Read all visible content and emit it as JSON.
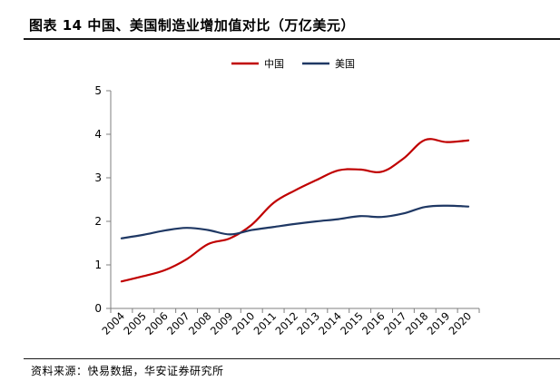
{
  "header": {
    "title": "图表 14 中国、美国制造业增加值对比（万亿美元）"
  },
  "footer": {
    "source": "资料来源：快易数据，华安证券研究所"
  },
  "colors": {
    "china": "#c00000",
    "usa": "#1f3864",
    "axis": "#7f7f7f",
    "text": "#000000"
  },
  "chart_data": {
    "type": "line",
    "title": "",
    "xlabel": "",
    "ylabel": "",
    "categories": [
      "2004",
      "2005",
      "2006",
      "2007",
      "2008",
      "2009",
      "2010",
      "2011",
      "2012",
      "2013",
      "2014",
      "2015",
      "2016",
      "2017",
      "2018",
      "2019",
      "2020"
    ],
    "yticks": [
      "0",
      "1",
      "2",
      "3",
      "4",
      "5"
    ],
    "ylim": [
      0,
      5
    ],
    "legend_position": "top-center",
    "series": [
      {
        "name": "中国",
        "color": "#c00000",
        "values": [
          0.62,
          0.74,
          0.88,
          1.13,
          1.48,
          1.61,
          1.92,
          2.42,
          2.71,
          2.95,
          3.17,
          3.19,
          3.14,
          3.44,
          3.87,
          3.82,
          3.86
        ]
      },
      {
        "name": "美国",
        "color": "#1f3864",
        "values": [
          1.61,
          1.69,
          1.79,
          1.85,
          1.8,
          1.7,
          1.8,
          1.87,
          1.94,
          2.0,
          2.05,
          2.12,
          2.1,
          2.18,
          2.33,
          2.36,
          2.34
        ]
      }
    ]
  }
}
